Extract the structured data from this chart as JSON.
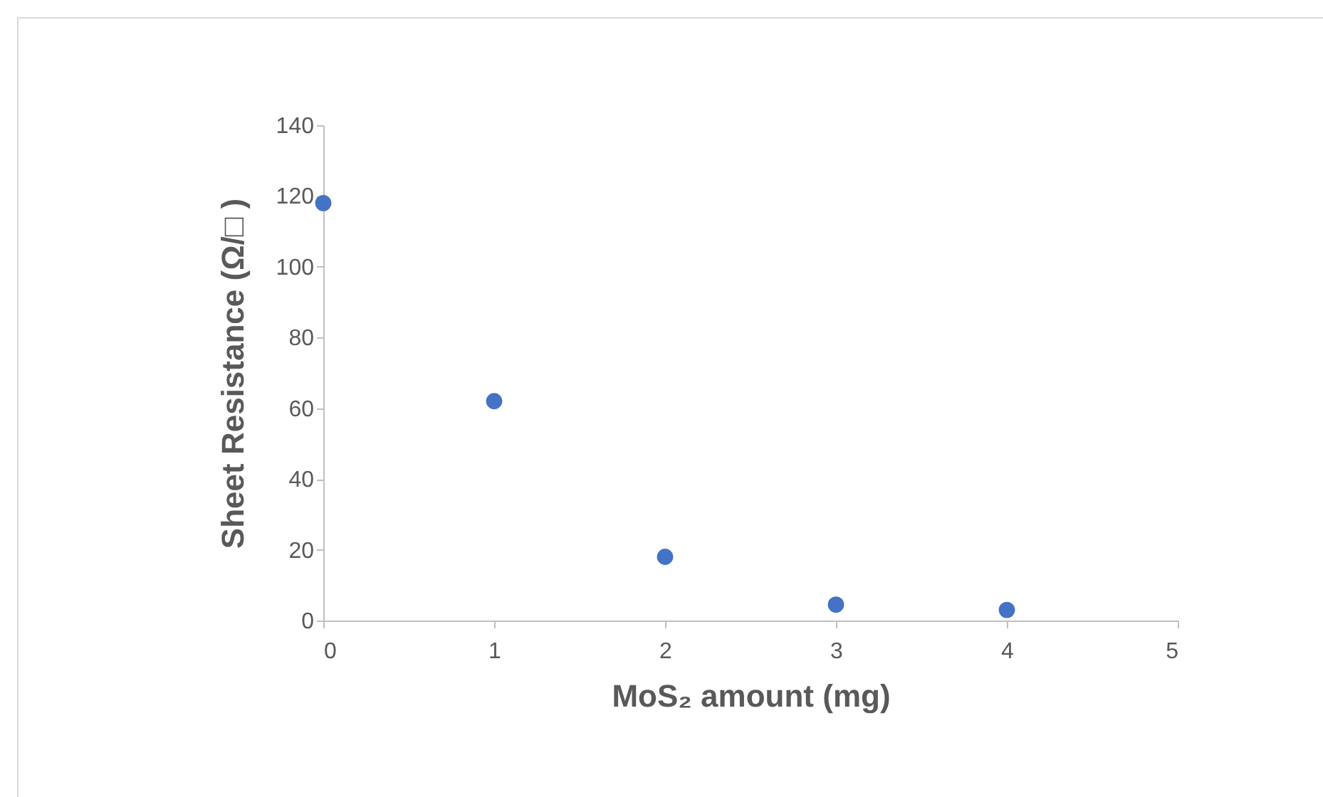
{
  "chart_data": {
    "type": "scatter",
    "xlabel": "MoS₂ amount (mg)",
    "ylabel": "Sheet Resistance (Ω/□ )",
    "x": [
      0,
      1,
      2,
      3,
      4
    ],
    "series": [
      {
        "color": "#4472c4",
        "values": [
          118,
          62,
          18,
          4.5,
          3
        ]
      }
    ],
    "xlim": [
      0,
      5
    ],
    "xticks": [
      0,
      1,
      2,
      3,
      4,
      5
    ],
    "ylim": [
      0,
      140
    ],
    "yticks": [
      0,
      20,
      40,
      60,
      80,
      100,
      120,
      140
    ],
    "marker": "circle",
    "grid": false
  }
}
